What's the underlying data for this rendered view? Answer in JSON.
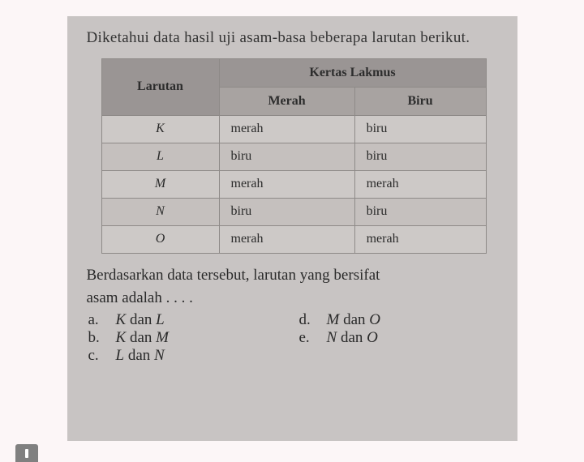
{
  "intro": "Diketahui data hasil uji asam-basa beberapa larutan berikut.",
  "table": {
    "header_main_col": "Larutan",
    "header_span": "Kertas Lakmus",
    "header_sub1": "Merah",
    "header_sub2": "Biru",
    "rows": [
      {
        "larutan": "K",
        "merah": "merah",
        "biru": "biru"
      },
      {
        "larutan": "L",
        "merah": "biru",
        "biru": "biru"
      },
      {
        "larutan": "M",
        "merah": "merah",
        "biru": "merah"
      },
      {
        "larutan": "N",
        "merah": "biru",
        "biru": "biru"
      },
      {
        "larutan": "O",
        "merah": "merah",
        "biru": "merah"
      }
    ]
  },
  "question_line1": "Berdasarkan data tersebut, larutan yang bersifat",
  "question_line2": "asam adalah . . . .",
  "options": {
    "a": {
      "letter": "a.",
      "text": "K dan L"
    },
    "b": {
      "letter": "b.",
      "text": "K dan M"
    },
    "c": {
      "letter": "c.",
      "text": "L dan N"
    },
    "d": {
      "letter": "d.",
      "text": "M dan O"
    },
    "e": {
      "letter": "e.",
      "text": "N dan O"
    }
  },
  "style": {
    "page_bg": "#c8c4c3",
    "body_bg": "#fcf6f7",
    "header_bg": "#9a9594",
    "subheader_bg": "#a8a3a1",
    "cell_bg_odd": "#cdc9c7",
    "cell_bg_even": "#c5c0be",
    "border_color": "#8e8a88",
    "text_color": "#2a2a2a",
    "base_font_size_pt": 14,
    "title_font_size_pt": 14,
    "font_family": "Georgia serif"
  }
}
